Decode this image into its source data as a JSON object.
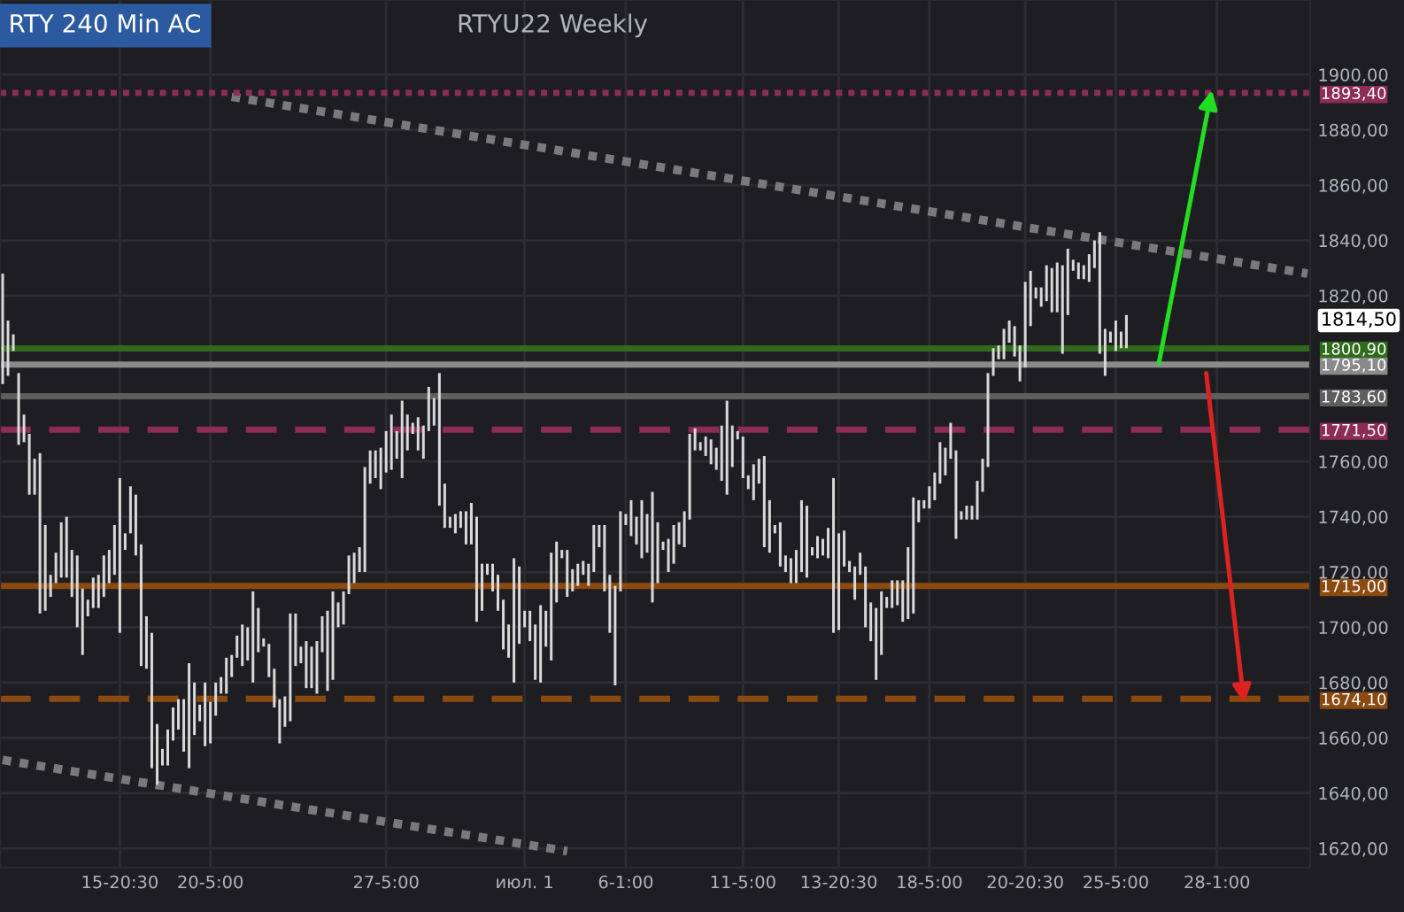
{
  "chart_data": {
    "type": "bar",
    "title": "RTY 240 Min AC",
    "subtitle": "RTYU22 Weekly",
    "categories": [
      null,
      null,
      null,
      null,
      null,
      null,
      null,
      null,
      null,
      null,
      null,
      null,
      null,
      null,
      null,
      null,
      null,
      null,
      null,
      null,
      null,
      null,
      "15-20:30",
      null,
      null,
      null,
      null,
      null,
      null,
      null,
      null,
      null,
      null,
      null,
      null,
      null,
      null,
      null,
      null,
      "20-5:00",
      null,
      null,
      null,
      null,
      null,
      null,
      null,
      null,
      null,
      null,
      null,
      null,
      null,
      null,
      null,
      null,
      null,
      null,
      null,
      null,
      null,
      null,
      null,
      null,
      null,
      null,
      null,
      null,
      null,
      null,
      null,
      null,
      "27-5:00",
      null,
      null,
      null,
      null,
      null,
      null,
      null,
      null,
      null,
      null,
      null,
      null,
      null,
      null,
      null,
      null,
      null,
      null,
      null,
      null,
      null,
      null,
      null,
      null,
      null,
      "июл. 1",
      null,
      null,
      null,
      null,
      null,
      null,
      null,
      null,
      null,
      null,
      null,
      null,
      null,
      null,
      null,
      null,
      null,
      null,
      "6-1:00",
      null,
      null,
      null,
      null,
      null,
      null,
      null,
      null,
      null,
      null,
      null,
      null,
      null,
      null,
      null,
      null,
      null,
      null,
      null,
      null,
      null,
      "11-5:00",
      null,
      null,
      null,
      null,
      null,
      null,
      null,
      null,
      null,
      null,
      null,
      null,
      null,
      null,
      null,
      null,
      null,
      "13-20:30",
      null,
      null,
      null,
      null,
      null,
      null,
      null,
      null,
      null,
      null,
      null,
      null,
      null,
      null,
      null,
      null,
      "18-5:00",
      null,
      null,
      null,
      null,
      null,
      null,
      null,
      null,
      null,
      null,
      null,
      null,
      null,
      null,
      null,
      null,
      null,
      "20-20:30",
      null,
      null,
      null,
      null,
      null,
      null,
      null,
      null,
      null,
      null,
      null,
      null,
      null,
      null,
      null,
      null,
      "25-5:00",
      null,
      null,
      null,
      null,
      null,
      null,
      null,
      null,
      null,
      null,
      null,
      null,
      null,
      null,
      null,
      null,
      null,
      null,
      "28-1:00",
      null,
      null,
      null,
      null,
      null,
      null,
      null,
      null,
      null,
      null,
      null,
      null,
      null,
      null,
      null,
      null,
      null
    ],
    "series": [
      {
        "color": "#d9d9d9",
        "values": [
          40,
          20,
          6,
          26,
          10,
          22,
          13,
          58,
          31,
          8,
          11,
          20,
          22,
          17,
          26,
          24,
          6,
          11,
          12,
          15,
          12,
          18,
          56,
          6,
          17,
          22,
          44,
          19,
          49,
          22,
          6,
          13,
          12,
          11,
          19,
          38,
          19,
          6,
          23,
          15,
          12,
          6,
          13,
          8,
          8,
          15,
          12,
          33,
          16,
          3,
          12,
          14,
          16,
          11,
          39,
          19,
          6,
          17,
          15,
          19,
          13,
          29,
          32,
          9,
          12,
          14,
          11,
          9,
          38,
          12,
          10,
          15,
          15,
          20,
          10,
          28,
          13,
          4,
          12,
          12,
          16,
          10,
          48,
          16,
          4,
          7,
          6,
          12,
          15,
          38,
          17,
          4,
          10,
          13,
          18,
          12,
          45,
          28,
          6,
          11,
          20,
          28,
          13,
          39,
          22,
          3,
          17,
          8,
          8,
          5,
          8,
          17,
          8,
          24,
          21,
          36,
          29,
          4,
          13,
          10,
          21,
          14,
          40,
          22,
          3,
          12,
          14,
          8,
          13,
          31,
          8,
          3,
          7,
          9,
          8,
          20,
          34,
          15,
          3,
          15,
          5,
          13,
          9,
          33,
          19,
          3,
          16,
          6,
          9,
          12,
          26,
          26,
          3,
          8,
          6,
          11,
          56,
          35,
          13,
          4,
          12,
          8,
          22,
          14,
          26,
          23,
          4,
          10,
          9,
          15,
          26,
          42,
          8,
          3,
          8,
          10,
          15,
          10,
          13,
          32,
          3,
          5,
          5,
          14,
          12,
          34,
          10,
          5,
          11,
          8,
          11,
          13,
          31,
          20,
          4,
          7,
          13,
          16,
          18,
          32,
          24,
          4,
          6,
          5,
          10,
          10,
          44,
          17,
          4,
          11,
          6,
          12,
          null,
          null,
          null,
          null,
          null,
          null,
          null,
          null,
          null,
          null,
          null,
          null,
          null,
          null,
          null,
          null,
          null,
          null,
          null,
          null,
          null,
          null,
          null,
          null,
          null,
          null,
          null,
          null,
          null,
          null,
          null,
          null,
          null,
          null
        ],
        "base": [
          1788,
          1791,
          1800,
          1766,
          1767,
          1748,
          1748,
          1705,
          1706,
          1711,
          1716,
          1718,
          1718,
          1711,
          1700,
          1690,
          1704,
          1707,
          1707,
          1711,
          1716,
          1719,
          1698,
          1728,
          1734,
          1726,
          1686,
          1685,
          1649,
          1643,
          1650,
          1650,
          1659,
          1663,
          1655,
          1649,
          1661,
          1666,
          1657,
          1658,
          1668,
          1676,
          1676,
          1682,
          1689,
          1686,
          1688,
          1680,
          1691,
          1693,
          1682,
          1671,
          1658,
          1664,
          1666,
          1686,
          1687,
          1678,
          1678,
          1676,
          1691,
          1677,
          1681,
          1700,
          1701,
          1712,
          1716,
          1720,
          1720,
          1752,
          1754,
          1750,
          1756,
          1757,
          1761,
          1754,
          1764,
          1770,
          1764,
          1761,
          1771,
          1773,
          1744,
          1736,
          1736,
          1734,
          1736,
          1730,
          1730,
          1702,
          1706,
          1719,
          1713,
          1706,
          1692,
          1689,
          1680,
          1694,
          1700,
          1695,
          1681,
          1680,
          1693,
          1688,
          1709,
          1725,
          1711,
          1713,
          1715,
          1719,
          1715,
          1720,
          1729,
          1713,
          1698,
          1679,
          1713,
          1737,
          1733,
          1730,
          1725,
          1727,
          1709,
          1716,
          1728,
          1720,
          1723,
          1730,
          1729,
          1739,
          1764,
          1764,
          1762,
          1759,
          1757,
          1753,
          1748,
          1758,
          1768,
          1754,
          1750,
          1746,
          1752,
          1729,
          1727,
          1734,
          1722,
          1720,
          1716,
          1716,
          1720,
          1718,
          1726,
          1725,
          1726,
          1725,
          1698,
          1699,
          1722,
          1720,
          1710,
          1719,
          1700,
          1695,
          1681,
          1690,
          1707,
          1707,
          1708,
          1702,
          1703,
          1705,
          1738,
          1743,
          1743,
          1746,
          1752,
          1755,
          1761,
          1732,
          1739,
          1739,
          1739,
          1739,
          1749,
          1758,
          1791,
          1797,
          1797,
          1803,
          1798,
          1789,
          1794,
          1809,
          1819,
          1816,
          1818,
          1814,
          1814,
          1799,
          1813,
          1829,
          1826,
          1826,
          1825,
          1830,
          1799,
          1791,
          1803,
          1800,
          1801,
          1801,
          null,
          null,
          null,
          null,
          null,
          null,
          null,
          null,
          null,
          null,
          null,
          null,
          null,
          null,
          null,
          null,
          null,
          null,
          null,
          null,
          null,
          null,
          null,
          null,
          null,
          null,
          null,
          null,
          null,
          null,
          null,
          null,
          null,
          null
        ]
      },
      {
        "type": "line",
        "color": "#7a7a7a",
        "line_style": "dotted",
        "values": [
          null,
          null,
          null,
          null,
          null,
          null,
          null,
          null,
          null,
          null,
          null,
          null,
          null,
          null,
          null,
          null,
          null,
          null,
          null,
          null,
          null,
          null,
          null,
          null,
          null,
          null,
          null,
          null,
          null,
          null,
          null,
          null,
          null,
          null,
          null,
          null,
          null,
          null,
          null,
          null,
          null,
          null,
          null,
          1892,
          null,
          null,
          null,
          null,
          null,
          null,
          null,
          null,
          null,
          null,
          null,
          null,
          null,
          null,
          null,
          null,
          null,
          null,
          null,
          null,
          null,
          null,
          null,
          null,
          null,
          null,
          null,
          null,
          null,
          null,
          null,
          null,
          null,
          null,
          null,
          null,
          null,
          null,
          null,
          null,
          null,
          null,
          null,
          null,
          null,
          null,
          null,
          null,
          null,
          null,
          null,
          null,
          null,
          null,
          null,
          null,
          null,
          null,
          null,
          null,
          null,
          null,
          null,
          null,
          null,
          null,
          null,
          null,
          null,
          null,
          null,
          null,
          null,
          null,
          null,
          null,
          null,
          null,
          null,
          null,
          null,
          null,
          null,
          null,
          null,
          null,
          null,
          null,
          null,
          null,
          null,
          null,
          null,
          null,
          null,
          null,
          null,
          null,
          null,
          null,
          null,
          null,
          null,
          null,
          null,
          null,
          null,
          null,
          null,
          null,
          null,
          null,
          null,
          null,
          null,
          null,
          null,
          null,
          null,
          null,
          null,
          null,
          null,
          null,
          null,
          null,
          null,
          null,
          null,
          null,
          null,
          null,
          null,
          null,
          null,
          null,
          null,
          null,
          null,
          null,
          null,
          null,
          null,
          null,
          null,
          null,
          null,
          null,
          null,
          null,
          null,
          null,
          null,
          null,
          null,
          null,
          null,
          null,
          null,
          null,
          null,
          null,
          null,
          null,
          null,
          null,
          null,
          null,
          null,
          null,
          null,
          null,
          null,
          null,
          null,
          null,
          null,
          null,
          null,
          null,
          null,
          null,
          null,
          null,
          null,
          null,
          null,
          null,
          null,
          null,
          null,
          null,
          null,
          null,
          null,
          null,
          null,
          null,
          null,
          null,
          null,
          1828
        ]
      },
      {
        "type": "line",
        "color": "#7a7a7a",
        "line_style": "dotted",
        "values": [
          1652,
          null,
          null,
          null,
          null,
          null,
          null,
          null,
          null,
          null,
          null,
          null,
          null,
          null,
          null,
          null,
          null,
          null,
          null,
          null,
          null,
          null,
          null,
          null,
          null,
          null,
          null,
          null,
          null,
          null,
          null,
          null,
          null,
          null,
          null,
          null,
          null,
          null,
          null,
          null,
          null,
          null,
          null,
          null,
          null,
          null,
          null,
          null,
          null,
          null,
          null,
          null,
          null,
          null,
          null,
          null,
          null,
          null,
          null,
          null,
          null,
          null,
          null,
          null,
          null,
          null,
          null,
          null,
          null,
          null,
          null,
          null,
          null,
          null,
          null,
          null,
          null,
          null,
          null,
          null,
          null,
          null,
          null,
          null,
          null,
          null,
          null,
          null,
          null,
          null,
          null,
          null,
          null,
          null,
          null,
          null,
          null,
          null,
          null,
          null,
          null,
          null,
          null,
          null,
          null,
          null,
          1619,
          null,
          null,
          null,
          null,
          null,
          null,
          null,
          null,
          null,
          null,
          null,
          null,
          null,
          null,
          null,
          null,
          null,
          null,
          null,
          null,
          null,
          null,
          null,
          null,
          null,
          null,
          null,
          null,
          null,
          null,
          null,
          null,
          null,
          null,
          null,
          null,
          null,
          null,
          null,
          null,
          null,
          null,
          null,
          null,
          null,
          null,
          null,
          null,
          null,
          null,
          null,
          null,
          null,
          null,
          null,
          null,
          null,
          null,
          null,
          null,
          null,
          null,
          null,
          null,
          null,
          null,
          null,
          null,
          null,
          null,
          null,
          null,
          null,
          null,
          null,
          null,
          null,
          null,
          null,
          null,
          null,
          null,
          null,
          null,
          null,
          null,
          null,
          null,
          null,
          null,
          null,
          null,
          null,
          null,
          null,
          null,
          null,
          null,
          null,
          null,
          null,
          null,
          null,
          null,
          null,
          null,
          null,
          null,
          null,
          null,
          null,
          null,
          null,
          null,
          null,
          null,
          null,
          null,
          null,
          null,
          null,
          null,
          null,
          null,
          null,
          null,
          null,
          null,
          null,
          null,
          null,
          null,
          null,
          null,
          null,
          null,
          null,
          null,
          null
        ]
      }
    ],
    "ylim": [
      1613,
      1927
    ],
    "yticks": [
      {
        "value": 1620,
        "label": "1620,00"
      },
      {
        "value": 1640,
        "label": "1640,00"
      },
      {
        "value": 1660,
        "label": "1660,00"
      },
      {
        "value": 1680,
        "label": "1680,00"
      },
      {
        "value": 1700,
        "label": "1700,00"
      },
      {
        "value": 1720,
        "label": "1720,00"
      },
      {
        "value": 1740,
        "label": "1740,00"
      },
      {
        "value": 1760,
        "label": "1760,00"
      },
      {
        "value": 1820,
        "label": "1820,00"
      },
      {
        "value": 1840,
        "label": "1840,00"
      },
      {
        "value": 1860,
        "label": "1860,00"
      },
      {
        "value": 1880,
        "label": "1880,00"
      },
      {
        "value": 1900,
        "label": "1900,00"
      }
    ],
    "grid": true,
    "ref_lines": [
      {
        "axis": "y",
        "value": 1893.4,
        "label": "1893,40",
        "color": "#8c2d55",
        "line_style": "dotted"
      },
      {
        "axis": "y",
        "value": 1800.9,
        "label": "1800,90",
        "color": "#2e6b1a",
        "line_style": "solid"
      },
      {
        "axis": "y",
        "value": 1795.1,
        "label": "1795,10",
        "color": "#8a8a8a",
        "line_style": "solid"
      },
      {
        "axis": "y",
        "value": 1783.6,
        "label": "1783,60",
        "color": "#5e5e5e",
        "line_style": "solid"
      },
      {
        "axis": "y",
        "value": 1771.5,
        "label": "1771,50",
        "color": "#8c2d55",
        "line_style": "dashed"
      },
      {
        "axis": "y",
        "value": 1715,
        "label": "1715,00",
        "color": "#8b4a10",
        "line_style": "solid"
      },
      {
        "axis": "y",
        "value": 1674.1,
        "label": "1674,10",
        "color": "#8b4a10",
        "line_style": "dashed"
      }
    ],
    "annotations": [
      "1814,50"
    ]
  }
}
